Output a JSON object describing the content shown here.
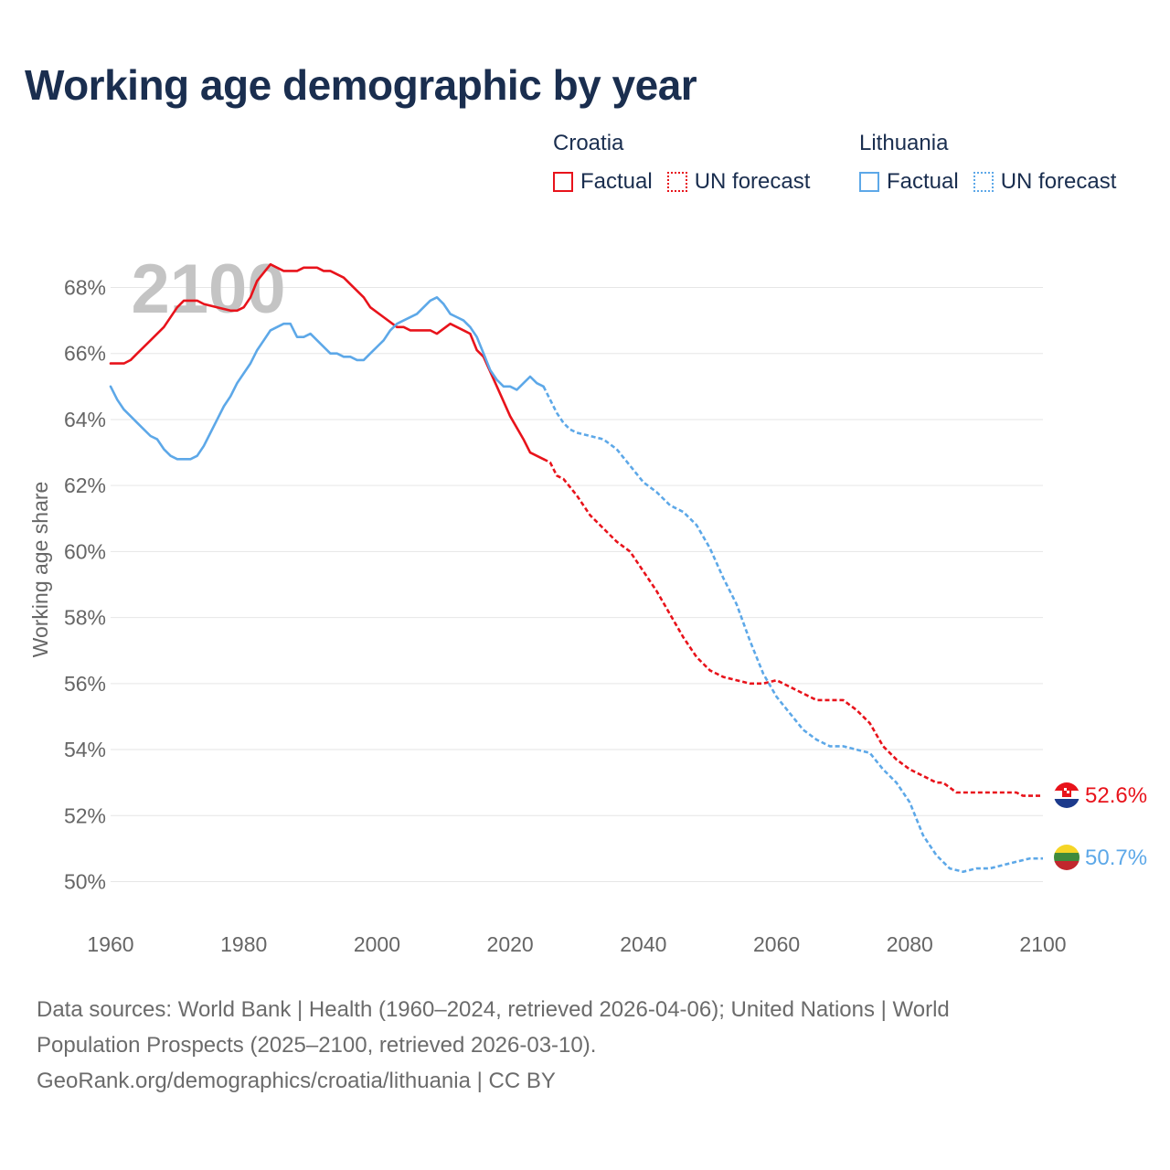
{
  "title": "Working age demographic by year",
  "legend": {
    "groups": [
      {
        "name": "Croatia",
        "color": "#e8131b",
        "items": [
          {
            "label": "Factual",
            "style": "solid"
          },
          {
            "label": "UN forecast",
            "style": "dotted"
          }
        ]
      },
      {
        "name": "Lithuania",
        "color": "#5da8e8",
        "items": [
          {
            "label": "Factual",
            "style": "solid"
          },
          {
            "label": "UN forecast",
            "style": "dotted"
          }
        ]
      }
    ]
  },
  "year_watermark": "2100",
  "chart_data": {
    "type": "line",
    "title": "Working age demographic by year",
    "xlabel": "",
    "ylabel": "Working age share",
    "xlim": [
      1960,
      2100
    ],
    "ylim": [
      49,
      69
    ],
    "xticks": [
      1960,
      1980,
      2000,
      2020,
      2040,
      2060,
      2080,
      2100
    ],
    "yticks": [
      50,
      52,
      54,
      56,
      58,
      60,
      62,
      64,
      66,
      68
    ],
    "ytick_format": "{}%",
    "grid": true,
    "factual_until": 2025,
    "series": [
      {
        "name": "Croatia",
        "color": "#e8131b",
        "end_label": "52.6%",
        "flag": "croatia-flag",
        "x": [
          1960,
          1962,
          1963,
          1964,
          1966,
          1968,
          1970,
          1971,
          1973,
          1974,
          1976,
          1978,
          1979,
          1980,
          1981,
          1982,
          1984,
          1985,
          1986,
          1988,
          1989,
          1991,
          1992,
          1993,
          1995,
          1996,
          1998,
          1999,
          2001,
          2003,
          2004,
          2005,
          2008,
          2009,
          2011,
          2013,
          2014,
          2015,
          2016,
          2018,
          2020,
          2022,
          2023,
          2025,
          2026,
          2027,
          2028,
          2030,
          2032,
          2034,
          2036,
          2038,
          2040,
          2042,
          2044,
          2046,
          2048,
          2050,
          2051,
          2052,
          2054,
          2056,
          2058,
          2060,
          2062,
          2064,
          2066,
          2068,
          2070,
          2072,
          2074,
          2076,
          2078,
          2080,
          2082,
          2084,
          2085,
          2087,
          2090,
          2092,
          2094,
          2096,
          2097,
          2100
        ],
        "values": [
          65.7,
          65.7,
          65.8,
          66.0,
          66.4,
          66.8,
          67.4,
          67.6,
          67.6,
          67.5,
          67.4,
          67.3,
          67.3,
          67.4,
          67.7,
          68.2,
          68.7,
          68.6,
          68.5,
          68.5,
          68.6,
          68.6,
          68.5,
          68.5,
          68.3,
          68.1,
          67.7,
          67.4,
          67.1,
          66.8,
          66.8,
          66.7,
          66.7,
          66.6,
          66.9,
          66.7,
          66.6,
          66.1,
          65.9,
          65.0,
          64.1,
          63.4,
          63.0,
          62.8,
          62.7,
          62.3,
          62.2,
          61.7,
          61.1,
          60.7,
          60.3,
          60.0,
          59.4,
          58.8,
          58.1,
          57.4,
          56.8,
          56.4,
          56.3,
          56.2,
          56.1,
          56.0,
          56.0,
          56.1,
          55.9,
          55.7,
          55.5,
          55.5,
          55.5,
          55.2,
          54.8,
          54.1,
          53.7,
          53.4,
          53.2,
          53.0,
          53.0,
          52.7,
          52.7,
          52.7,
          52.7,
          52.7,
          52.6,
          52.6
        ]
      },
      {
        "name": "Lithuania",
        "color": "#5da8e8",
        "end_label": "50.7%",
        "flag": "lithuania-flag",
        "x": [
          1960,
          1961,
          1962,
          1963,
          1964,
          1966,
          1967,
          1968,
          1969,
          1970,
          1972,
          1973,
          1974,
          1975,
          1976,
          1977,
          1978,
          1979,
          1980,
          1981,
          1982,
          1983,
          1984,
          1985,
          1986,
          1987,
          1988,
          1989,
          1990,
          1991,
          1993,
          1994,
          1995,
          1996,
          1997,
          1998,
          1999,
          2000,
          2001,
          2002,
          2003,
          2004,
          2006,
          2007,
          2008,
          2009,
          2010,
          2011,
          2012,
          2013,
          2014,
          2015,
          2016,
          2017,
          2018,
          2019,
          2020,
          2021,
          2022,
          2023,
          2024,
          2025,
          2026,
          2027,
          2028,
          2029,
          2030,
          2032,
          2034,
          2036,
          2038,
          2040,
          2042,
          2044,
          2046,
          2048,
          2050,
          2052,
          2054,
          2056,
          2058,
          2060,
          2062,
          2064,
          2066,
          2068,
          2070,
          2072,
          2074,
          2076,
          2078,
          2080,
          2082,
          2084,
          2086,
          2088,
          2090,
          2092,
          2094,
          2096,
          2098,
          2100
        ],
        "values": [
          65.0,
          64.6,
          64.3,
          64.1,
          63.9,
          63.5,
          63.4,
          63.1,
          62.9,
          62.8,
          62.8,
          62.9,
          63.2,
          63.6,
          64.0,
          64.4,
          64.7,
          65.1,
          65.4,
          65.7,
          66.1,
          66.4,
          66.7,
          66.8,
          66.9,
          66.9,
          66.5,
          66.5,
          66.6,
          66.4,
          66.0,
          66.0,
          65.9,
          65.9,
          65.8,
          65.8,
          66.0,
          66.2,
          66.4,
          66.7,
          66.9,
          67.0,
          67.2,
          67.4,
          67.6,
          67.7,
          67.5,
          67.2,
          67.1,
          67.0,
          66.8,
          66.5,
          66.0,
          65.5,
          65.2,
          65.0,
          65.0,
          64.9,
          65.1,
          65.3,
          65.1,
          65.0,
          64.6,
          64.2,
          63.9,
          63.7,
          63.6,
          63.5,
          63.4,
          63.1,
          62.6,
          62.1,
          61.8,
          61.4,
          61.2,
          60.8,
          60.1,
          59.2,
          58.4,
          57.3,
          56.3,
          55.6,
          55.1,
          54.6,
          54.3,
          54.1,
          54.1,
          54.0,
          53.9,
          53.4,
          53.0,
          52.4,
          51.4,
          50.8,
          50.4,
          50.3,
          50.4,
          50.4,
          50.5,
          50.6,
          50.7,
          50.7
        ]
      }
    ]
  },
  "source": {
    "line1": "Data sources: World Bank | Health (1960–2024, retrieved 2026-04-06); United Nations | World",
    "line2": "Population Prospects (2025–2100, retrieved 2026-03-10).",
    "line3": "GeoRank.org/demographics/croatia/lithuania | CC BY"
  }
}
